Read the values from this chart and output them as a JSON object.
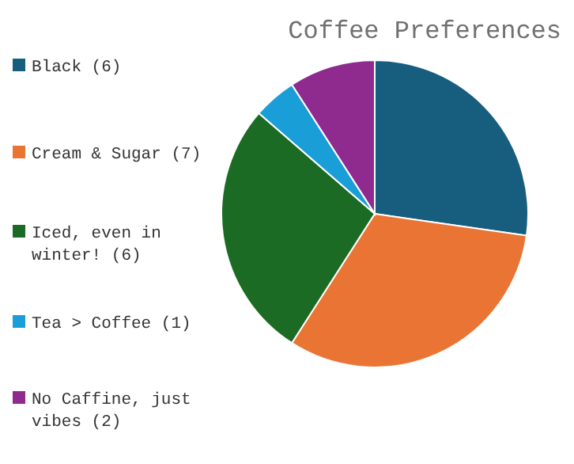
{
  "chart_data": {
    "type": "pie",
    "title": "Coffee Preferences",
    "categories": [
      "Black (6)",
      "Cream & Sugar (7)",
      "Iced, even in winter! (6)",
      "Tea > Coffee (1)",
      "No Caffine, just vibes (2)"
    ],
    "values": [
      6,
      7,
      6,
      1,
      2
    ],
    "colors": [
      "#175e7e",
      "#ea7433",
      "#1c6b24",
      "#1a9ed8",
      "#8f2b8f"
    ],
    "legend": "left"
  }
}
